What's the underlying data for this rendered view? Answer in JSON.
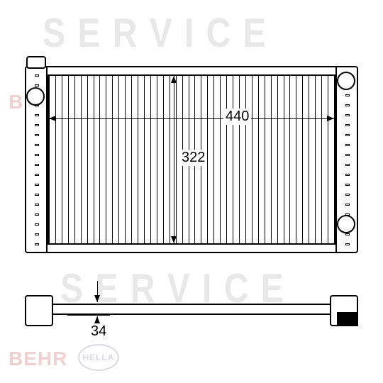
{
  "watermarks": {
    "service": "S E R V I C E",
    "behr": "BEHR",
    "hella": "HELLA"
  },
  "dimensions": {
    "width_label": "440",
    "height_label": "322",
    "depth_label": "34"
  },
  "styling": {
    "line_color": "#000000",
    "background_color": "#ffffff",
    "watermark_gray": "#e8e8e8",
    "watermark_pink": "#f0d0d0",
    "watermark_blue": "#d8d8e8",
    "label_fontsize": 20,
    "fin_count": 45
  },
  "views": {
    "front": {
      "type": "technical-drawing",
      "component": "radiator-front-elevation"
    },
    "top": {
      "type": "technical-drawing",
      "component": "radiator-top-view"
    }
  }
}
